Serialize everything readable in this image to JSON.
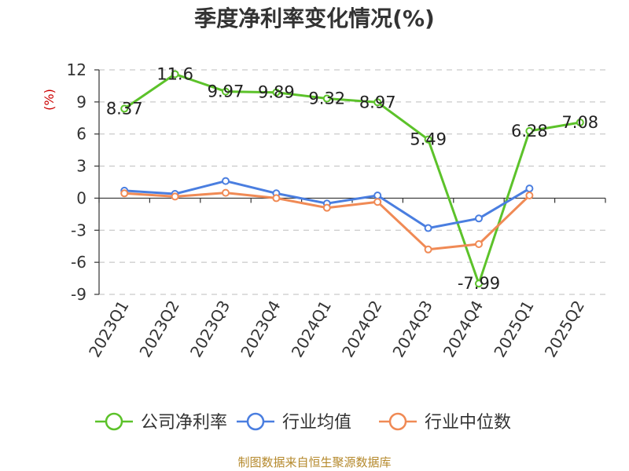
{
  "chart_data": {
    "type": "line",
    "title": "季度净利率变化情况(%)",
    "ylabel": "(%)",
    "categories": [
      "2023Q1",
      "2023Q2",
      "2023Q3",
      "2023Q4",
      "2024Q1",
      "2024Q2",
      "2024Q3",
      "2024Q4",
      "2025Q1",
      "2025Q2"
    ],
    "ylim": [
      -9,
      12
    ],
    "yticks": [
      12,
      9,
      6,
      3,
      0,
      -3,
      -6,
      -9
    ],
    "grid": true,
    "legend_position": "bottom",
    "series": [
      {
        "name": "公司净利率",
        "color": "#5cc22a",
        "values": [
          8.37,
          11.6,
          9.97,
          9.89,
          9.32,
          8.97,
          5.49,
          -7.99,
          6.28,
          7.08
        ],
        "labels": [
          "8.37",
          "11.6",
          "9.97",
          "9.89",
          "9.32",
          "8.97",
          "5.49",
          "-7.99",
          "6.28",
          "7.08"
        ]
      },
      {
        "name": "行业均值",
        "color": "#4a7ee0",
        "values": [
          0.7,
          0.4,
          1.6,
          0.45,
          -0.5,
          0.25,
          -2.8,
          -1.9,
          0.9,
          null
        ]
      },
      {
        "name": "行业中位数",
        "color": "#f08a55",
        "values": [
          0.45,
          0.15,
          0.5,
          0.0,
          -0.9,
          -0.35,
          -4.8,
          -4.3,
          0.25,
          null
        ]
      }
    ],
    "source": "制图数据来自恒生聚源数据库"
  }
}
